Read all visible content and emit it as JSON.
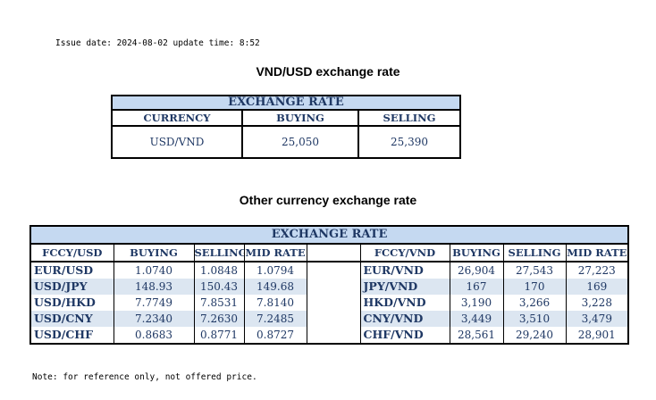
{
  "issue_line": "Issue date: 2024-08-02 update time: 8:52",
  "usd_title": "VND/USD exchange rate",
  "usd_table": {
    "header": "EXCHANGE RATE",
    "columns": [
      "CURRENCY",
      "BUYING",
      "SELLING"
    ],
    "row": [
      "USD/VND",
      "25,050",
      "25,390"
    ]
  },
  "other_title": "Other currency exchange rate",
  "other_table": {
    "header": "EXCHANGE  RATE",
    "left_columns": [
      "FCCY/USD",
      "BUYING",
      "SELLING",
      "MID RATE"
    ],
    "right_columns": [
      "FCCY/VND",
      "BUYING",
      "SELLING",
      "MID RATE"
    ],
    "left_rows": [
      [
        "EUR/USD",
        "1.0740",
        "1.0848",
        "1.0794"
      ],
      [
        "USD/JPY",
        "148.93",
        "150.43",
        "149.68"
      ],
      [
        "USD/HKD",
        "7.7749",
        "7.8531",
        "7.8140"
      ],
      [
        "USD/CNY",
        "7.2340",
        "7.2630",
        "7.2485"
      ],
      [
        "USD/CHF",
        "0.8683",
        "0.8771",
        "0.8727"
      ]
    ],
    "right_rows": [
      [
        "EUR/VND",
        "26,904",
        "27,543",
        "27,223"
      ],
      [
        "JPY/VND",
        "167",
        "170",
        "169"
      ],
      [
        "HKD/VND",
        "3,190",
        "3,266",
        "3,228"
      ],
      [
        "CNY/VND",
        "3,449",
        "3,510",
        "3,479"
      ],
      [
        "CHF/VND",
        "28,561",
        "29,240",
        "28,901"
      ]
    ]
  },
  "note": "Note: for reference only, not offered price.",
  "colors": {
    "text": "#1f3864",
    "header_bg": "#c5d9f1",
    "alt_row_bg": "#dce6f1"
  }
}
